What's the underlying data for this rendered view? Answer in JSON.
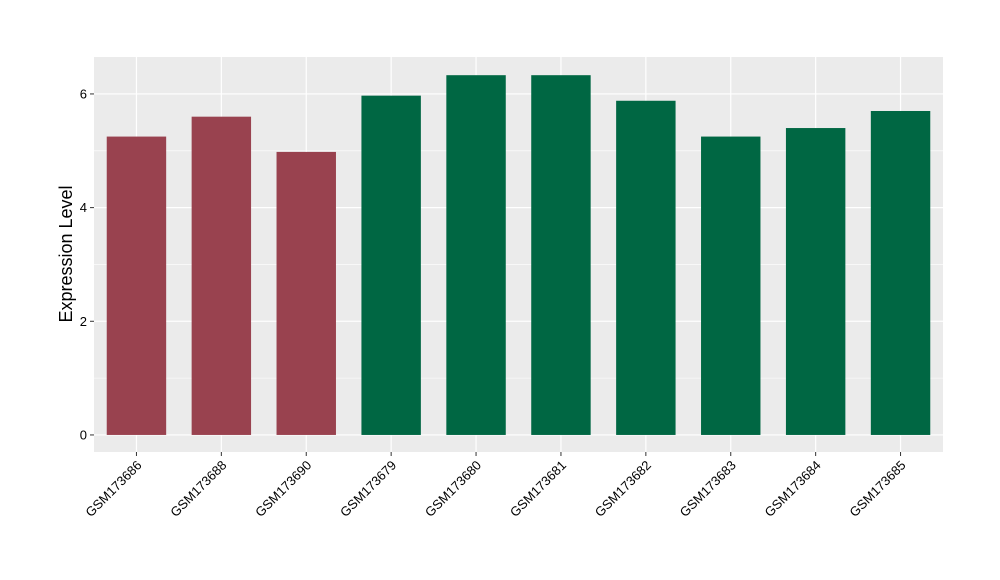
{
  "chart_data": {
    "type": "bar",
    "title": "",
    "xlabel": "",
    "ylabel": "Expression Level",
    "ylim": [
      -0.3,
      6.65
    ],
    "yticks": [
      0,
      2,
      4,
      6
    ],
    "grid": true,
    "legend": "none",
    "colors": {
      "group_a": "#99424F",
      "group_b": "#006743",
      "panel_bg": "#EBEBEB",
      "grid_major": "#FFFFFF"
    },
    "categories": [
      "GSM173686",
      "GSM173688",
      "GSM173690",
      "GSM173679",
      "GSM173680",
      "GSM173681",
      "GSM173682",
      "GSM173683",
      "GSM173684",
      "GSM173685"
    ],
    "values": [
      5.25,
      5.6,
      4.98,
      5.97,
      6.33,
      6.33,
      5.88,
      5.25,
      5.4,
      5.7
    ],
    "bar_colors": [
      "#99424F",
      "#99424F",
      "#99424F",
      "#006743",
      "#006743",
      "#006743",
      "#006743",
      "#006743",
      "#006743",
      "#006743"
    ]
  }
}
